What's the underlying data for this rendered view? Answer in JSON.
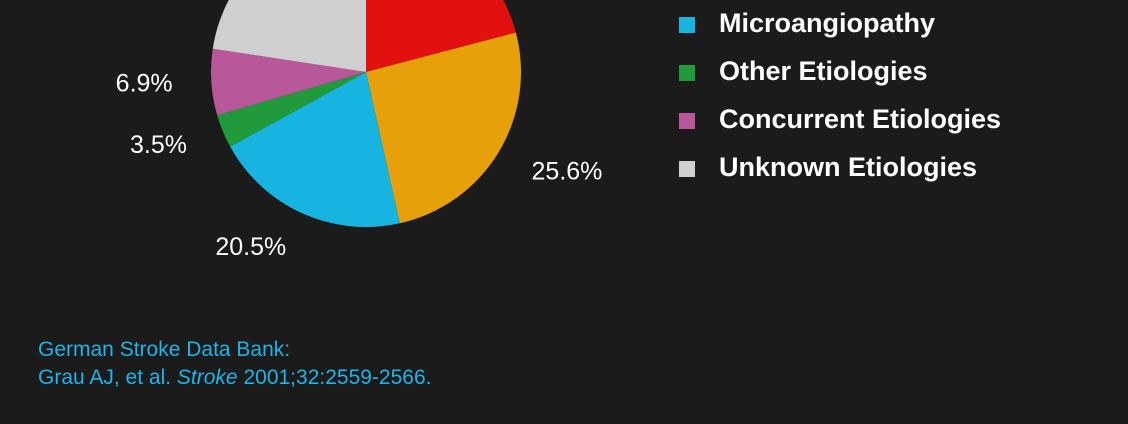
{
  "chart_data": {
    "type": "pie",
    "categories": [
      null,
      null,
      "Microangiopathy",
      "Other Etiologies",
      "Concurrent Etiologies",
      "Unknown Etiologies"
    ],
    "values": [
      20.9,
      25.6,
      20.5,
      3.5,
      6.9,
      22.6
    ],
    "value_labels": [
      null,
      "25.6%",
      "20.5%",
      "3.5%",
      "6.9%",
      null
    ],
    "colors": [
      "#e31010",
      "#e6a10a",
      "#17b4e0",
      "#219a3c",
      "#b8579a",
      "#cfcfcf"
    ]
  },
  "citation": {
    "source": "German Stroke Data Bank:",
    "authors": "Grau AJ, et al.",
    "journal": "Stroke",
    "details": "2001;32:2559-2566."
  }
}
